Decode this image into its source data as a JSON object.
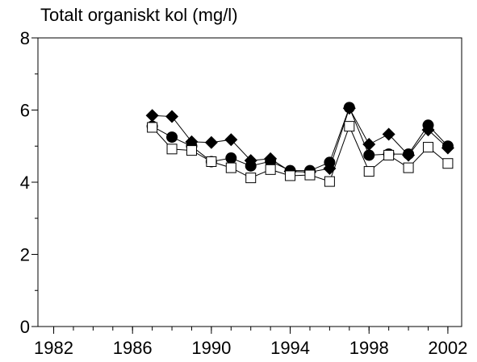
{
  "chart_data": {
    "type": "line",
    "title": "Totalt organiskt kol (mg/l)",
    "x": [
      1987,
      1988,
      1989,
      1990,
      1991,
      1992,
      1993,
      1994,
      1995,
      1996,
      1997,
      1998,
      1999,
      2000,
      2001,
      2002
    ],
    "series": [
      {
        "marker": "diamond",
        "color": "#000000",
        "values": [
          5.85,
          5.82,
          5.12,
          5.1,
          5.18,
          4.6,
          4.65,
          4.3,
          4.28,
          4.38,
          6.05,
          5.05,
          5.33,
          4.75,
          5.45,
          4.95
        ]
      },
      {
        "marker": "circle",
        "color": "#000000",
        "values": [
          5.55,
          5.25,
          5.0,
          4.57,
          4.67,
          4.45,
          4.58,
          4.32,
          4.32,
          4.55,
          6.07,
          4.75,
          4.78,
          4.78,
          5.58,
          5.0
        ]
      },
      {
        "marker": "open-square",
        "color": "#000000",
        "values": [
          5.52,
          4.92,
          4.88,
          4.57,
          4.4,
          4.12,
          4.35,
          4.18,
          4.2,
          4.02,
          5.55,
          4.3,
          4.75,
          4.4,
          4.97,
          4.52
        ]
      }
    ],
    "xlim": [
      1981.2,
      2002.7
    ],
    "xticks": [
      1982,
      1986,
      1990,
      1994,
      1998,
      2002
    ],
    "xminorticks": [
      1982,
      1983,
      1984,
      1985,
      1986,
      1987,
      1988,
      1989,
      1990,
      1991,
      1992,
      1993,
      1994,
      1995,
      1996,
      1997,
      1998,
      1999,
      2000,
      2001,
      2002
    ],
    "ylim": [
      0,
      8
    ],
    "yticks": [
      0,
      2,
      4,
      6,
      8
    ],
    "yminorticks": [
      1,
      3,
      5,
      7
    ],
    "grid": false
  }
}
